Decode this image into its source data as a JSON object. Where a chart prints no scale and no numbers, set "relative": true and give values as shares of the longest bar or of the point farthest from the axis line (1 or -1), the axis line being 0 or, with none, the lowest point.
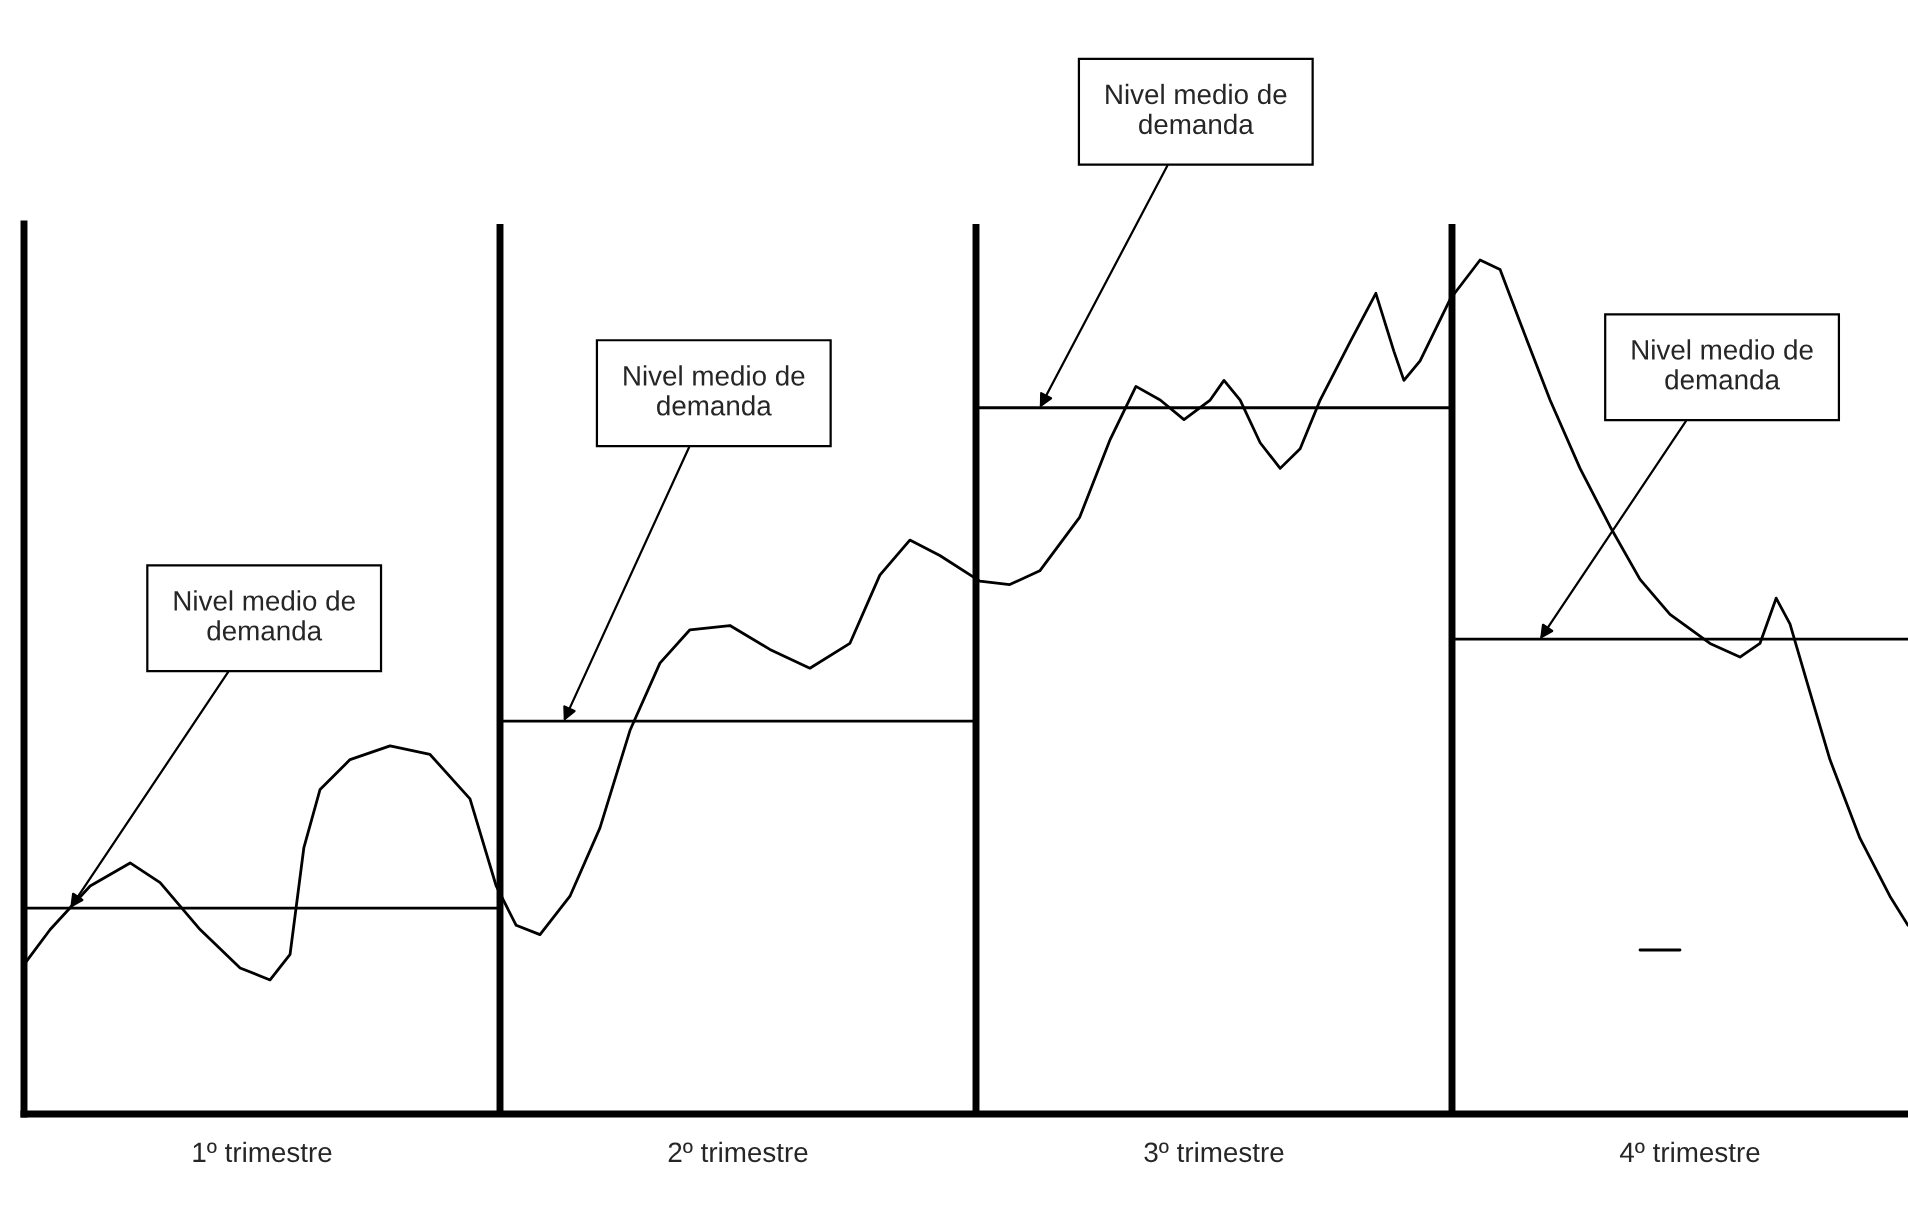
{
  "chart_data": {
    "type": "line",
    "relative": true,
    "xlim": [
      0,
      3.958
    ],
    "xticks": [
      {
        "value": 0.5,
        "label": "1º trimestre"
      },
      {
        "value": 1.5,
        "label": "2º trimestre"
      },
      {
        "value": 2.5,
        "label": "3º trimestre"
      },
      {
        "value": 3.5,
        "label": "4º trimestre"
      }
    ],
    "tick_labels": "x",
    "grid": false,
    "legend": false,
    "series": [
      {
        "color": "#000000",
        "x": [
          0,
          0.055,
          0.139,
          0.223,
          0.286,
          0.37,
          0.454,
          0.517,
          0.559,
          0.588,
          0.622,
          0.685,
          0.769,
          0.853,
          0.937,
          0.992,
          1.034,
          1.084,
          1.147,
          1.21,
          1.273,
          1.336,
          1.399,
          1.483,
          1.567,
          1.651,
          1.735,
          1.798,
          1.861,
          1.924,
          2.008,
          2.071,
          2.134,
          2.218,
          2.282,
          2.336,
          2.387,
          2.437,
          2.492,
          2.521,
          2.555,
          2.597,
          2.639,
          2.681,
          2.723,
          2.786,
          2.84,
          2.878,
          2.899,
          2.933,
          2.996,
          3.059,
          3.101,
          3.143,
          3.206,
          3.269,
          3.332,
          3.395,
          3.458,
          3.542,
          3.605,
          3.647,
          3.681,
          3.71,
          3.752,
          3.794,
          3.857,
          3.92,
          3.958
        ],
        "values": [
          0.175,
          0.216,
          0.267,
          0.294,
          0.271,
          0.216,
          0.171,
          0.157,
          0.187,
          0.312,
          0.38,
          0.415,
          0.431,
          0.421,
          0.369,
          0.267,
          0.221,
          0.21,
          0.255,
          0.335,
          0.449,
          0.528,
          0.567,
          0.572,
          0.544,
          0.522,
          0.551,
          0.631,
          0.672,
          0.654,
          0.624,
          0.62,
          0.636,
          0.699,
          0.79,
          0.852,
          0.836,
          0.813,
          0.836,
          0.859,
          0.836,
          0.786,
          0.756,
          0.779,
          0.836,
          0.904,
          0.961,
          0.893,
          0.859,
          0.882,
          0.954,
          1,
          0.989,
          0.927,
          0.836,
          0.756,
          0.688,
          0.626,
          0.585,
          0.551,
          0.535,
          0.551,
          0.604,
          0.574,
          0.494,
          0.415,
          0.323,
          0.255,
          0.221
        ]
      },
      {
        "color": "#000000",
        "x": [
          0,
          1
        ],
        "values": [
          0.241,
          0.241
        ]
      },
      {
        "color": "#000000",
        "x": [
          1,
          2
        ],
        "values": [
          0.46,
          0.46
        ]
      },
      {
        "color": "#000000",
        "x": [
          2,
          3
        ],
        "values": [
          0.827,
          0.827
        ]
      },
      {
        "color": "#000000",
        "x": [
          3,
          3.958
        ],
        "values": [
          0.556,
          0.556
        ]
      }
    ],
    "ref_lines": [
      {
        "axis": "x",
        "value": 1,
        "color": "#000000"
      },
      {
        "axis": "x",
        "value": 2,
        "color": "#000000"
      },
      {
        "axis": "x",
        "value": 3,
        "color": "#000000"
      }
    ],
    "annotations": [
      {
        "text": "Nivel medio de demanda",
        "x": 0.097,
        "y": 0.241
      },
      {
        "text": "Nivel medio de demanda",
        "x": 1.134,
        "y": 0.46
      },
      {
        "text": "Nivel medio de demanda",
        "x": 2.134,
        "y": 0.827
      },
      {
        "text": "Nivel medio de demanda",
        "x": 3.185,
        "y": 0.556
      }
    ]
  }
}
